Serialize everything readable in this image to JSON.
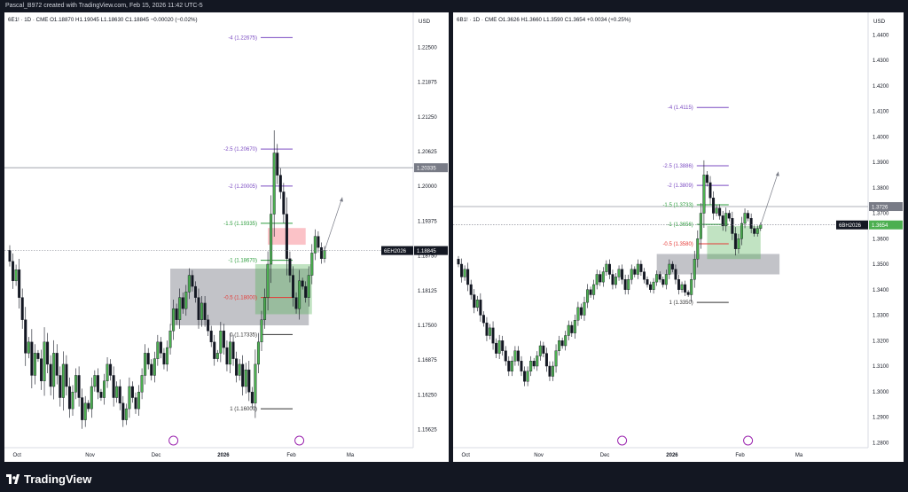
{
  "header": {
    "caption": "Pascal_B972 created with TradingView.com, Feb 15, 2026 11:42 UTC-5"
  },
  "footer": {
    "brand": "TradingView"
  },
  "charts": [
    {
      "id": "left",
      "legend": "6E1! · 1D · CME  O1.18870  H1.19045  L1.18630  C1.18845  −0.00020 (−0.02%)",
      "currency": "USD",
      "price_min": 1.153,
      "price_max": 1.23,
      "price_ticks": [
        "1.22500",
        "1.21875",
        "1.21250",
        "1.20625",
        "1.20000",
        "1.19375",
        "1.18750",
        "1.18125",
        "1.17500",
        "1.16875",
        "1.16250",
        "1.15625"
      ],
      "time_labels": [
        {
          "label": "Oct",
          "idx": 1
        },
        {
          "label": "Nov",
          "idx": 24
        },
        {
          "label": "Dec",
          "idx": 45
        },
        {
          "label": "2026",
          "idx": 66,
          "bold": true
        },
        {
          "label": "Feb",
          "idx": 88
        },
        {
          "label": "Ma",
          "idx": 107
        }
      ],
      "last_price": {
        "value": 1.18845,
        "text": "1.18845",
        "tag": "6EH2026"
      },
      "gray_line": {
        "value": 1.20335,
        "text": "1.20335"
      },
      "fib_levels": [
        {
          "label": "-4 (1.22675)",
          "value": 1.22675,
          "color": "#7b4bc2"
        },
        {
          "label": "-2.5 (1.20670)",
          "value": 1.2067,
          "color": "#7b4bc2"
        },
        {
          "label": "-2 (1.20005)",
          "value": 1.20005,
          "color": "#7b4bc2"
        },
        {
          "label": "-1.5 (1.19335)",
          "value": 1.19335,
          "color": "#2e9d3e"
        },
        {
          "label": "-1 (1.18670)",
          "value": 1.1867,
          "color": "#2e9d3e"
        },
        {
          "label": "-0.5 (1.18000)",
          "value": 1.18,
          "color": "#e53935"
        },
        {
          "label": "0 (1.17335)",
          "value": 1.17335,
          "color": "#333333"
        },
        {
          "label": "1 (1.16000)",
          "value": 1.16,
          "color": "#333333"
        }
      ],
      "series": [
        1.1865,
        1.183,
        1.185,
        1.18,
        1.176,
        1.17,
        1.172,
        1.166,
        1.17,
        1.169,
        1.165,
        1.172,
        1.168,
        1.164,
        1.17,
        1.166,
        1.162,
        1.168,
        1.164,
        1.16,
        1.163,
        1.166,
        1.162,
        1.158,
        1.161,
        1.16,
        1.164,
        1.166,
        1.163,
        1.162,
        1.165,
        1.168,
        1.166,
        1.162,
        1.164,
        1.161,
        1.158,
        1.16,
        1.164,
        1.162,
        1.16,
        1.163,
        1.166,
        1.17,
        1.168,
        1.166,
        1.169,
        1.172,
        1.17,
        1.168,
        1.171,
        1.174,
        1.178,
        1.176,
        1.18,
        1.178,
        1.181,
        1.184,
        1.182,
        1.18,
        1.176,
        1.179,
        1.176,
        1.174,
        1.172,
        1.169,
        1.17,
        1.174,
        1.171,
        1.168,
        1.172,
        1.169,
        1.166,
        1.168,
        1.164,
        1.167,
        1.163,
        1.161,
        1.168,
        1.172,
        1.176,
        1.18,
        1.186,
        1.195,
        1.206,
        1.202,
        1.199,
        1.195,
        1.187,
        1.184,
        1.18,
        1.178,
        1.183,
        1.182,
        1.18,
        1.184,
        1.188,
        1.191,
        1.189,
        1.187,
        1.1885
      ],
      "boxes": [
        {
          "kind": "gray",
          "i0": 51,
          "i1": 95,
          "p0": 1.1852,
          "p1": 1.175
        },
        {
          "kind": "red",
          "i0": 82,
          "i1": 94,
          "p0": 1.1925,
          "p1": 1.1895
        },
        {
          "kind": "green",
          "i0": 78,
          "i1": 96,
          "p0": 1.186,
          "p1": 1.177
        }
      ],
      "marks": [
        {
          "idx": 52
        },
        {
          "idx": 92
        }
      ]
    },
    {
      "id": "right",
      "legend": "6B1! · 1D · CME  O1.3626  H1.3660  L1.3590  C1.3654  +0.0034 (+0.25%)",
      "currency": "USD",
      "price_min": 1.278,
      "price_max": 1.446,
      "price_ticks": [
        "1.4400",
        "1.4300",
        "1.4200",
        "1.4100",
        "1.4000",
        "1.3900",
        "1.3800",
        "1.3700",
        "1.3600",
        "1.3500",
        "1.3400",
        "1.3300",
        "1.3200",
        "1.3100",
        "1.3000",
        "1.2900",
        "1.2800"
      ],
      "time_labels": [
        {
          "label": "Oct",
          "idx": 1
        },
        {
          "label": "Nov",
          "idx": 24
        },
        {
          "label": "Dec",
          "idx": 45
        },
        {
          "label": "2026",
          "idx": 66,
          "bold": true
        },
        {
          "label": "Feb",
          "idx": 88
        },
        {
          "label": "Ma",
          "idx": 107
        }
      ],
      "last_price": {
        "value": 1.3654,
        "text": "1.3654",
        "tag": "6BH2026"
      },
      "gray_line": {
        "value": 1.3726,
        "text": "1.3726"
      },
      "fib_levels": [
        {
          "label": "-4 (1.4115)",
          "value": 1.4115,
          "color": "#7b4bc2"
        },
        {
          "label": "-2.5 (1.3886)",
          "value": 1.3886,
          "color": "#7b4bc2"
        },
        {
          "label": "-2 (1.3809)",
          "value": 1.3809,
          "color": "#7b4bc2"
        },
        {
          "label": "-1.5 (1.3733)",
          "value": 1.3733,
          "color": "#2e9d3e"
        },
        {
          "label": "-1 (1.3656)",
          "value": 1.3656,
          "color": "#2e9d3e"
        },
        {
          "label": "-0.5 (1.3580)",
          "value": 1.358,
          "color": "#e53935"
        },
        {
          "label": "1 (1.3350)",
          "value": 1.335,
          "color": "#333333"
        }
      ],
      "series": [
        1.35,
        1.345,
        1.348,
        1.342,
        1.338,
        1.333,
        1.336,
        1.33,
        1.327,
        1.322,
        1.325,
        1.319,
        1.315,
        1.32,
        1.316,
        1.312,
        1.308,
        1.312,
        1.316,
        1.312,
        1.308,
        1.304,
        1.308,
        1.312,
        1.31,
        1.314,
        1.318,
        1.315,
        1.31,
        1.306,
        1.31,
        1.316,
        1.32,
        1.318,
        1.322,
        1.326,
        1.323,
        1.328,
        1.333,
        1.33,
        1.335,
        1.34,
        1.338,
        1.342,
        1.346,
        1.343,
        1.347,
        1.35,
        1.346,
        1.342,
        1.345,
        1.348,
        1.344,
        1.34,
        1.344,
        1.348,
        1.346,
        1.35,
        1.347,
        1.344,
        1.342,
        1.34,
        1.343,
        1.346,
        1.344,
        1.342,
        1.346,
        1.35,
        1.348,
        1.344,
        1.34,
        1.342,
        1.339,
        1.338,
        1.344,
        1.352,
        1.36,
        1.37,
        1.385,
        1.382,
        1.376,
        1.37,
        1.372,
        1.369,
        1.365,
        1.37,
        1.368,
        1.362,
        1.356,
        1.36,
        1.366,
        1.37,
        1.368,
        1.364,
        1.362,
        1.364,
        1.3654
      ],
      "boxes": [
        {
          "kind": "gray",
          "i0": 63,
          "i1": 102,
          "p0": 1.354,
          "p1": 1.346
        },
        {
          "kind": "green",
          "i0": 79,
          "i1": 96,
          "p0": 1.365,
          "p1": 1.352
        }
      ],
      "marks": [
        {
          "idx": 52
        },
        {
          "idx": 92
        }
      ]
    }
  ]
}
